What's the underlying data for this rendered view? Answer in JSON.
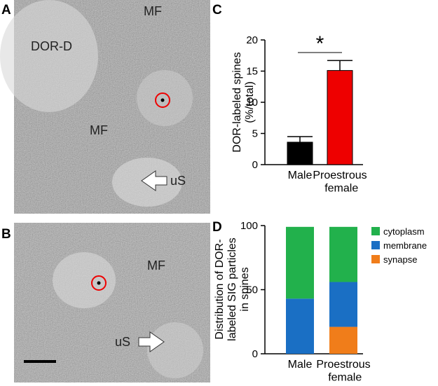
{
  "panel_labels": [
    "A",
    "B",
    "C",
    "D"
  ],
  "micrographs": [
    {
      "texts": [
        "DOR-D",
        "MF",
        "MF",
        "uS"
      ]
    },
    {
      "texts": [
        "MF",
        "uS"
      ]
    }
  ],
  "chart_data": [
    {
      "type": "bar",
      "categories": [
        "Male",
        "Proestrous female"
      ],
      "values": [
        3.6,
        15.1
      ],
      "errors": [
        0.9,
        1.6
      ],
      "colors": [
        "#000000",
        "#ee0000"
      ],
      "ylabel": [
        "DOR-labeled spines",
        "(%/total)"
      ],
      "ylim": [
        0,
        20
      ],
      "yticks": [
        0,
        5,
        10,
        15,
        20
      ],
      "annotation": "*"
    },
    {
      "type": "stacked_bar",
      "categories": [
        "Male",
        "Proestrous female"
      ],
      "ylabel": [
        "Distribution of DOR-",
        "labeled SIG particles",
        "in spines"
      ],
      "ylim": [
        0,
        100
      ],
      "yticks": [
        0,
        50,
        100
      ],
      "series": [
        {
          "name": "cytoplasm",
          "color": "#22b14c",
          "values": [
            56,
            43
          ]
        },
        {
          "name": "membrane",
          "color": "#1a6fc4",
          "values": [
            43,
            35
          ]
        },
        {
          "name": "synapse",
          "color": "#f07d1a",
          "values": [
            0,
            21
          ]
        }
      ]
    }
  ]
}
